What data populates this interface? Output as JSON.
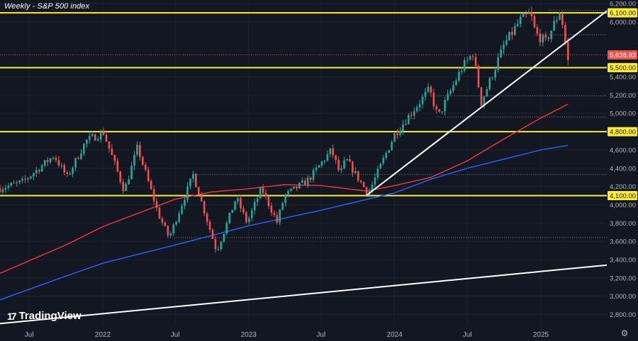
{
  "title": "Weekly - S&P 500 index",
  "branding": {
    "logo_mark": "17",
    "logo_text": "TradingView"
  },
  "colors": {
    "background": "#131722",
    "grid": "#1e2230",
    "axis_text": "#b2b5be",
    "bull": "#26a69a",
    "bear": "#ef5350",
    "horizontal_level": "#ffeb3b",
    "trendline": "#ffffff",
    "ma_red": "#f23645",
    "ma_blue": "#2962ff",
    "price_badge": "#ef5350"
  },
  "chart_data": {
    "type": "candlestick",
    "timeframe": "Weekly",
    "instrument": "S&P 500 index",
    "x_labels": [
      "Jul",
      "2022",
      "Jul",
      "2023",
      "Jul",
      "2024",
      "Jul",
      "2025"
    ],
    "x_label_dates": [
      "2021-07-01",
      "2022-01-01",
      "2022-07-01",
      "2023-01-01",
      "2023-07-01",
      "2024-01-01",
      "2024-07-01",
      "2025-01-01"
    ],
    "x_range": [
      "2021-04-19",
      "2025-06-15"
    ],
    "y_ticks": [
      2800,
      3000,
      3200,
      3400,
      3600,
      3800,
      4000,
      4200,
      4400,
      4600,
      5000,
      5200,
      5400,
      6000,
      6200
    ],
    "y_tick_labels": [
      "2,800.00",
      "3,000.00",
      "3,200.00",
      "3,400.00",
      "3,600.00",
      "3,800.00",
      "4,000.00",
      "4,200.00",
      "4,400.00",
      "4,600.00",
      "5,000.00",
      "5,200.00",
      "5,400.00",
      "6,000.00",
      "6,200.00"
    ],
    "ylim": [
      2680,
      6240
    ],
    "horizontal_levels": [
      {
        "value": 6100,
        "label": "6,100.00"
      },
      {
        "value": 5500,
        "label": "5,500.00"
      },
      {
        "value": 4800,
        "label": "4,800.00"
      },
      {
        "value": 4100,
        "label": "4,100.00"
      }
    ],
    "last_price": {
      "value": 5638.93,
      "label": "5,638.93"
    },
    "trendlines": [
      {
        "from": [
          "2023-10-23",
          4103
        ],
        "to": [
          "2025-06-15",
          6120
        ]
      },
      {
        "from": [
          "2021-04-19",
          2700
        ],
        "to": [
          "2025-06-15",
          3340
        ]
      }
    ],
    "dotted_levels": [
      {
        "value": 6128,
        "from": "2025-01-20"
      },
      {
        "value": 5860,
        "from": "2024-12-16"
      },
      {
        "value": 5640,
        "from": "2021-04-19"
      },
      {
        "value": 5190,
        "from": "2024-04-15"
      },
      {
        "value": 4960,
        "from": "2024-04-15"
      },
      {
        "value": 4330,
        "from": "2022-08-15"
      },
      {
        "value": 3640,
        "from": "2022-06-13"
      }
    ],
    "ma_red": {
      "dates": [
        "2021-04-19",
        "2021-10-01",
        "2022-01-01",
        "2022-07-01",
        "2022-10-01",
        "2023-01-01",
        "2023-04-01",
        "2023-07-01",
        "2023-10-23",
        "2024-01-01",
        "2024-04-01",
        "2024-07-01",
        "2024-10-01",
        "2025-01-01",
        "2025-03-10"
      ],
      "values": [
        3250,
        3560,
        3760,
        4060,
        4140,
        4175,
        4220,
        4210,
        4150,
        4210,
        4300,
        4480,
        4720,
        4950,
        5100
      ]
    },
    "ma_blue": {
      "dates": [
        "2021-04-19",
        "2021-10-01",
        "2022-01-01",
        "2022-07-01",
        "2023-01-01",
        "2023-07-01",
        "2024-01-01",
        "2024-04-01",
        "2024-07-01",
        "2024-10-01",
        "2025-01-01",
        "2025-03-10"
      ],
      "values": [
        2960,
        3220,
        3360,
        3560,
        3770,
        3940,
        4130,
        4280,
        4400,
        4500,
        4600,
        4650
      ]
    },
    "anchors": {
      "dates": [
        "2021-04-19",
        "2021-06-15",
        "2021-09-01",
        "2021-10-04",
        "2021-11-20",
        "2022-01-03",
        "2022-02-24",
        "2022-03-29",
        "2022-05-20",
        "2022-06-16",
        "2022-08-15",
        "2022-10-13",
        "2022-12-01",
        "2022-12-28",
        "2023-02-02",
        "2023-03-13",
        "2023-04-01",
        "2023-06-01",
        "2023-07-27",
        "2023-08-18",
        "2023-09-01",
        "2023-10-27",
        "2024-01-01",
        "2024-03-28",
        "2024-04-19",
        "2024-06-15",
        "2024-07-15",
        "2024-08-05",
        "2024-10-01",
        "2024-11-11",
        "2024-12-06",
        "2024-12-19",
        "2025-01-13",
        "2025-02-19",
        "2025-03-10"
      ],
      "values": [
        4180,
        4250,
        4540,
        4300,
        4700,
        4790,
        4150,
        4630,
        3900,
        3640,
        4330,
        3490,
        4080,
        3800,
        4180,
        3810,
        4100,
        4280,
        4600,
        4330,
        4500,
        4120,
        4770,
        5260,
        4960,
        5480,
        5660,
        5120,
        5750,
        6020,
        6090,
        5870,
        5780,
        6130,
        5570
      ]
    }
  }
}
